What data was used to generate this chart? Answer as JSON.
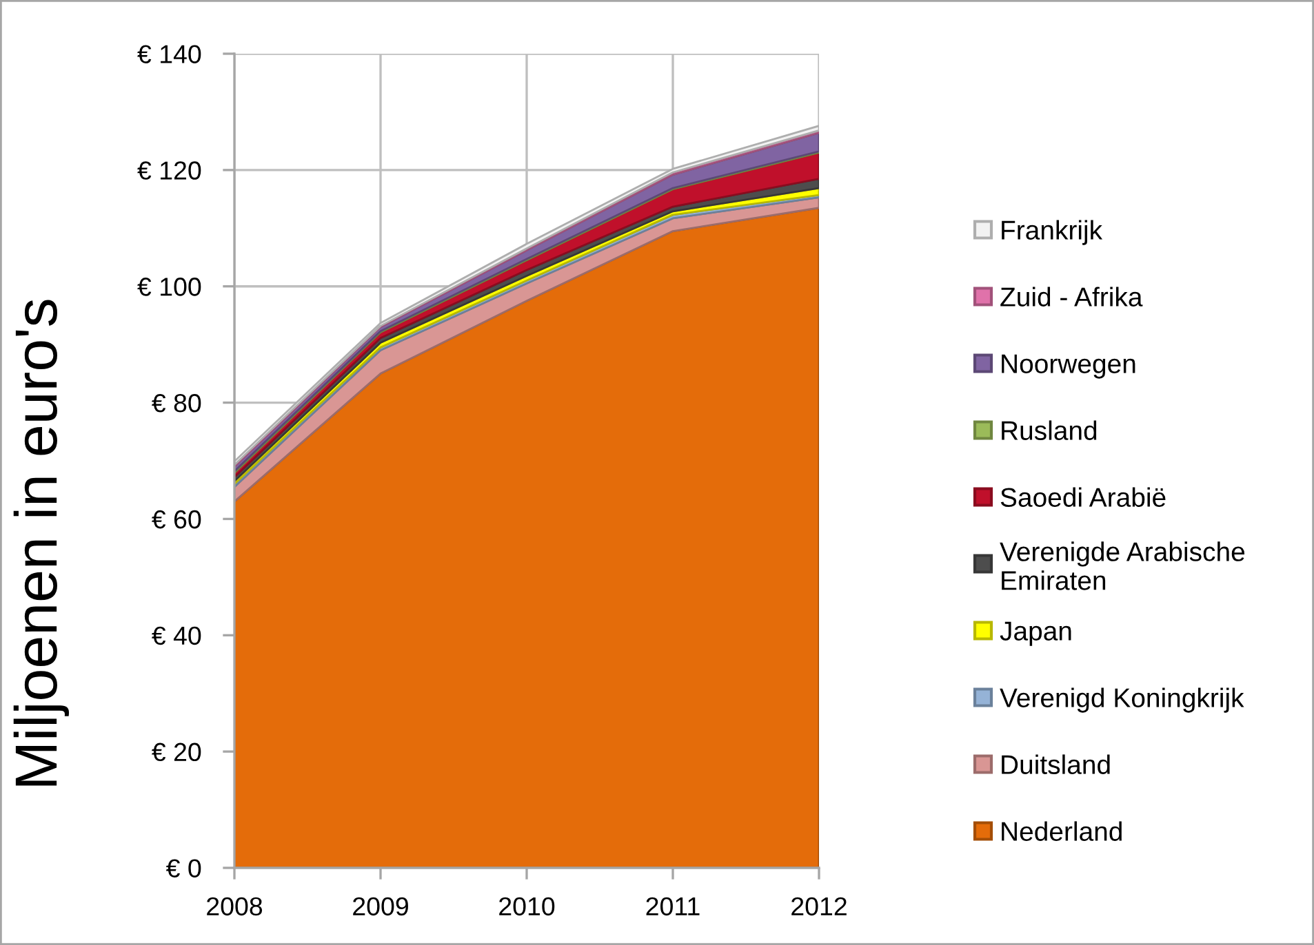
{
  "chart_data": {
    "type": "area",
    "stacked": true,
    "ylabel": "Miljoenen in euro's",
    "categories": [
      "2008",
      "2009",
      "2010",
      "2011",
      "2012"
    ],
    "series": [
      {
        "name": "Nederland",
        "color": "#e46c0a",
        "values": [
          63,
          85,
          97.5,
          109.5,
          113.5
        ]
      },
      {
        "name": "Duitsland",
        "color": "#d99694",
        "values": [
          2.5,
          4.0,
          3.0,
          2.2,
          1.8
        ]
      },
      {
        "name": "Verenigd Koningkrijk",
        "color": "#95b3d7",
        "values": [
          0.5,
          0.5,
          0.5,
          0.6,
          0.4
        ]
      },
      {
        "name": "Japan",
        "color": "#ffff00",
        "values": [
          0.5,
          0.8,
          0.8,
          0.6,
          1.2
        ]
      },
      {
        "name": "Verenigde Arabische Emiraten",
        "color": "#4d4d4d",
        "values": [
          0.7,
          0.8,
          1.0,
          0.8,
          1.6
        ]
      },
      {
        "name": "Saoedi Arabië",
        "color": "#c0102b",
        "values": [
          0.7,
          1.0,
          1.7,
          3.0,
          4.5
        ]
      },
      {
        "name": "Rusland",
        "color": "#9bbb59",
        "values": [
          0.3,
          0.2,
          0.2,
          0.2,
          0.2
        ]
      },
      {
        "name": "Noorwegen",
        "color": "#8064a2",
        "values": [
          0.8,
          0.7,
          1.5,
          2.3,
          3.2
        ]
      },
      {
        "name": "Zuid - Afrika",
        "color": "#e072aa",
        "values": [
          0.3,
          0.2,
          0.3,
          0.4,
          0.4
        ]
      },
      {
        "name": "Frankrijk",
        "color": "#f2f2f2",
        "values": [
          0.6,
          0.5,
          0.8,
          0.6,
          0.8
        ]
      }
    ],
    "ylim": [
      0,
      140
    ],
    "yticks": [
      {
        "value": 0,
        "label": "€ 0"
      },
      {
        "value": 20,
        "label": "€ 20"
      },
      {
        "value": 40,
        "label": "€ 40"
      },
      {
        "value": 60,
        "label": "€ 60"
      },
      {
        "value": 80,
        "label": "€ 80"
      },
      {
        "value": 100,
        "label": "€ 100"
      },
      {
        "value": 120,
        "label": "€ 120"
      },
      {
        "value": 140,
        "label": "€ 140"
      }
    ],
    "grid": true,
    "legend": "right"
  }
}
